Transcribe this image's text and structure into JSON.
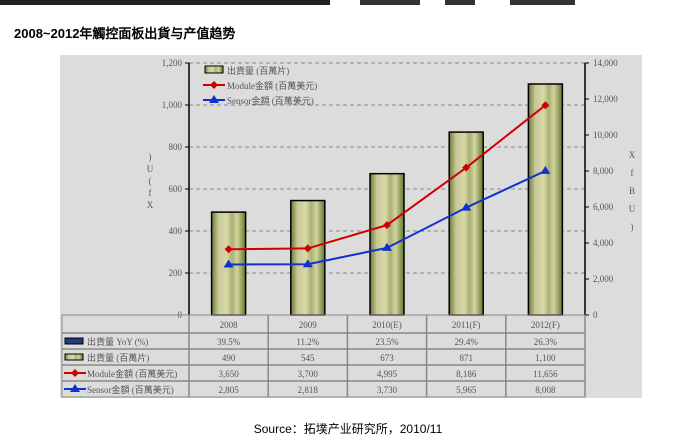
{
  "title": "2008~2012年觸控面板出貨与产值趋势",
  "source": "Source：拓墣产业研究所，2010/11",
  "chart_data": {
    "type": "bar+line",
    "categories": [
      "2008",
      "2009",
      "2010(E)",
      "2011(F)",
      "2012(F)"
    ],
    "y_left": {
      "range": [
        0,
        1200
      ],
      "ticks": [
        "0",
        "200",
        "400",
        "600",
        "800",
        "1,000",
        "1,200"
      ],
      "label": ")U(fX"
    },
    "y_right": {
      "range": [
        0,
        14000
      ],
      "ticks": [
        "0",
        "2,000",
        "4,000",
        "6,000",
        "8,000",
        "10,000",
        "12,000",
        "14,000"
      ],
      "label": "XfBU)"
    },
    "grid": true,
    "legend": "top-left",
    "series": [
      {
        "name": "出貨量 (百萬片)",
        "type": "bar",
        "axis": "left",
        "values": [
          490,
          545,
          673,
          871,
          1100
        ],
        "color": "#b8b880"
      },
      {
        "name": "Module金額 (百萬美元)",
        "type": "line",
        "axis": "right",
        "values": [
          3650,
          3700,
          4995,
          8186,
          11656
        ],
        "color": "#d00000",
        "marker": "diamond"
      },
      {
        "name": "Sensor金額 (百萬美元)",
        "type": "line",
        "axis": "right",
        "values": [
          2805,
          2818,
          3730,
          5965,
          8008
        ],
        "color": "#1030d0",
        "marker": "triangle"
      }
    ],
    "table": {
      "rows": [
        {
          "label": "出貨量 YoY (%)",
          "cells": [
            "39.5%",
            "11.2%",
            "23.5%",
            "29.4%",
            "26.3%"
          ]
        },
        {
          "label": "出貨量 (百萬片)",
          "cells": [
            "490",
            "545",
            "673",
            "871",
            "1,100"
          ]
        },
        {
          "label": "Module金額 (百萬美元)",
          "cells": [
            "3,650",
            "3,700",
            "4,995",
            "8,186",
            "11,656"
          ]
        },
        {
          "label": "Sensor金額 (百萬美元)",
          "cells": [
            "2,805",
            "2,818",
            "3,730",
            "5,965",
            "8,008"
          ]
        }
      ]
    }
  }
}
